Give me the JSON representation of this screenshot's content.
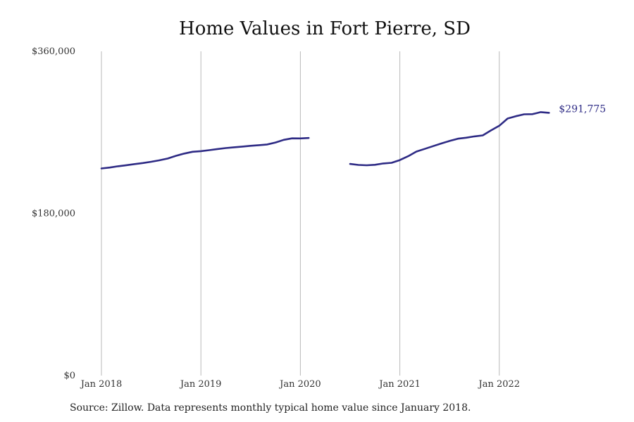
{
  "chart_data": {
    "type": "line",
    "title": "Home Values in Fort Pierre, SD",
    "xlabel": "",
    "ylabel": "",
    "ylim": [
      0,
      360000
    ],
    "yticks": [
      {
        "value": 0,
        "label": "$0"
      },
      {
        "value": 180000,
        "label": "$180,000"
      },
      {
        "value": 360000,
        "label": "$360,000"
      }
    ],
    "xticks": [
      {
        "date": "2018-01",
        "label": "Jan 2018"
      },
      {
        "date": "2019-01",
        "label": "Jan 2019"
      },
      {
        "date": "2020-01",
        "label": "Jan 2020"
      },
      {
        "date": "2021-01",
        "label": "Jan 2021"
      },
      {
        "date": "2022-01",
        "label": "Jan 2022"
      }
    ],
    "grid": "vertical",
    "colors": {
      "line": "#2e2b85",
      "grid": "#b8b8b8"
    },
    "series": [
      {
        "segments": [
          [
            [
              "2018-01",
              230000
            ],
            [
              "2018-02",
              231000
            ],
            [
              "2018-03",
              232400
            ],
            [
              "2018-04",
              233600
            ],
            [
              "2018-05",
              234800
            ],
            [
              "2018-06",
              236000
            ],
            [
              "2018-07",
              237400
            ],
            [
              "2018-08",
              239000
            ],
            [
              "2018-09",
              241000
            ],
            [
              "2018-10",
              244000
            ],
            [
              "2018-11",
              246500
            ],
            [
              "2018-12",
              248500
            ],
            [
              "2019-01",
              249200
            ],
            [
              "2019-02",
              250300
            ],
            [
              "2019-03",
              251500
            ],
            [
              "2019-04",
              252600
            ],
            [
              "2019-05",
              253500
            ],
            [
              "2019-06",
              254300
            ],
            [
              "2019-07",
              255100
            ],
            [
              "2019-08",
              255800
            ],
            [
              "2019-09",
              256600
            ],
            [
              "2019-10",
              258800
            ],
            [
              "2019-11",
              261800
            ],
            [
              "2019-12",
              263400
            ],
            [
              "2020-01",
              263300
            ],
            [
              "2020-02",
              263800
            ]
          ],
          [
            [
              "2020-07",
              235000
            ],
            [
              "2020-08",
              233900
            ],
            [
              "2020-09",
              233500
            ],
            [
              "2020-10",
              234000
            ],
            [
              "2020-11",
              235500
            ],
            [
              "2020-12",
              236200
            ],
            [
              "2021-01",
              239300
            ],
            [
              "2021-02",
              243600
            ],
            [
              "2021-03",
              248700
            ],
            [
              "2021-04",
              251700
            ],
            [
              "2021-05",
              254700
            ],
            [
              "2021-06",
              257700
            ],
            [
              "2021-07",
              260500
            ],
            [
              "2021-08",
              263000
            ],
            [
              "2021-09",
              264100
            ],
            [
              "2021-10",
              265600
            ],
            [
              "2021-11",
              266700
            ],
            [
              "2021-12",
              272200
            ],
            [
              "2022-01",
              277400
            ],
            [
              "2022-02",
              285400
            ],
            [
              "2022-03",
              288000
            ],
            [
              "2022-04",
              290100
            ],
            [
              "2022-05",
              290300
            ],
            [
              "2022-06",
              292500
            ],
            [
              "2022-07",
              291775
            ]
          ]
        ]
      }
    ],
    "end_label": "$291,775"
  },
  "source_note": "Source: Zillow. Data represents monthly typical home value since January 2018."
}
